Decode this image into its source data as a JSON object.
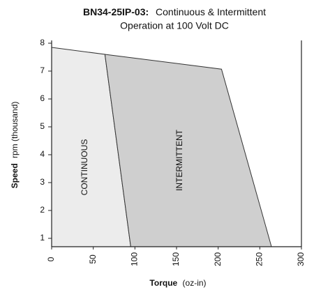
{
  "chart_data": {
    "type": "area",
    "title": "BN34-25IP-03:",
    "subtitle": [
      "Continuous & Intermittent",
      "Operation at 100 Volt DC"
    ],
    "ylabel": [
      "Speed",
      "rpm (thousand)"
    ],
    "xlabel": [
      "Torque",
      "(oz-in)"
    ],
    "xlim": [
      0,
      300
    ],
    "xticks": [
      0,
      50,
      100,
      150,
      200,
      250,
      300
    ],
    "ylim": [
      0.7,
      8
    ],
    "yticks": [
      1,
      2,
      3,
      4,
      5,
      6,
      7,
      8
    ],
    "series": [
      {
        "name": "CONTINUOUS",
        "color": "#ececec",
        "x": [
          0,
          64,
          95,
          0
        ],
        "values": [
          7.85,
          7.6,
          0.7,
          0.7
        ]
      },
      {
        "name": "INTERMITTENT",
        "color": "#cfcfcf",
        "x": [
          64,
          204,
          264,
          95
        ],
        "values": [
          7.6,
          7.07,
          0.7,
          0.7
        ]
      }
    ]
  }
}
